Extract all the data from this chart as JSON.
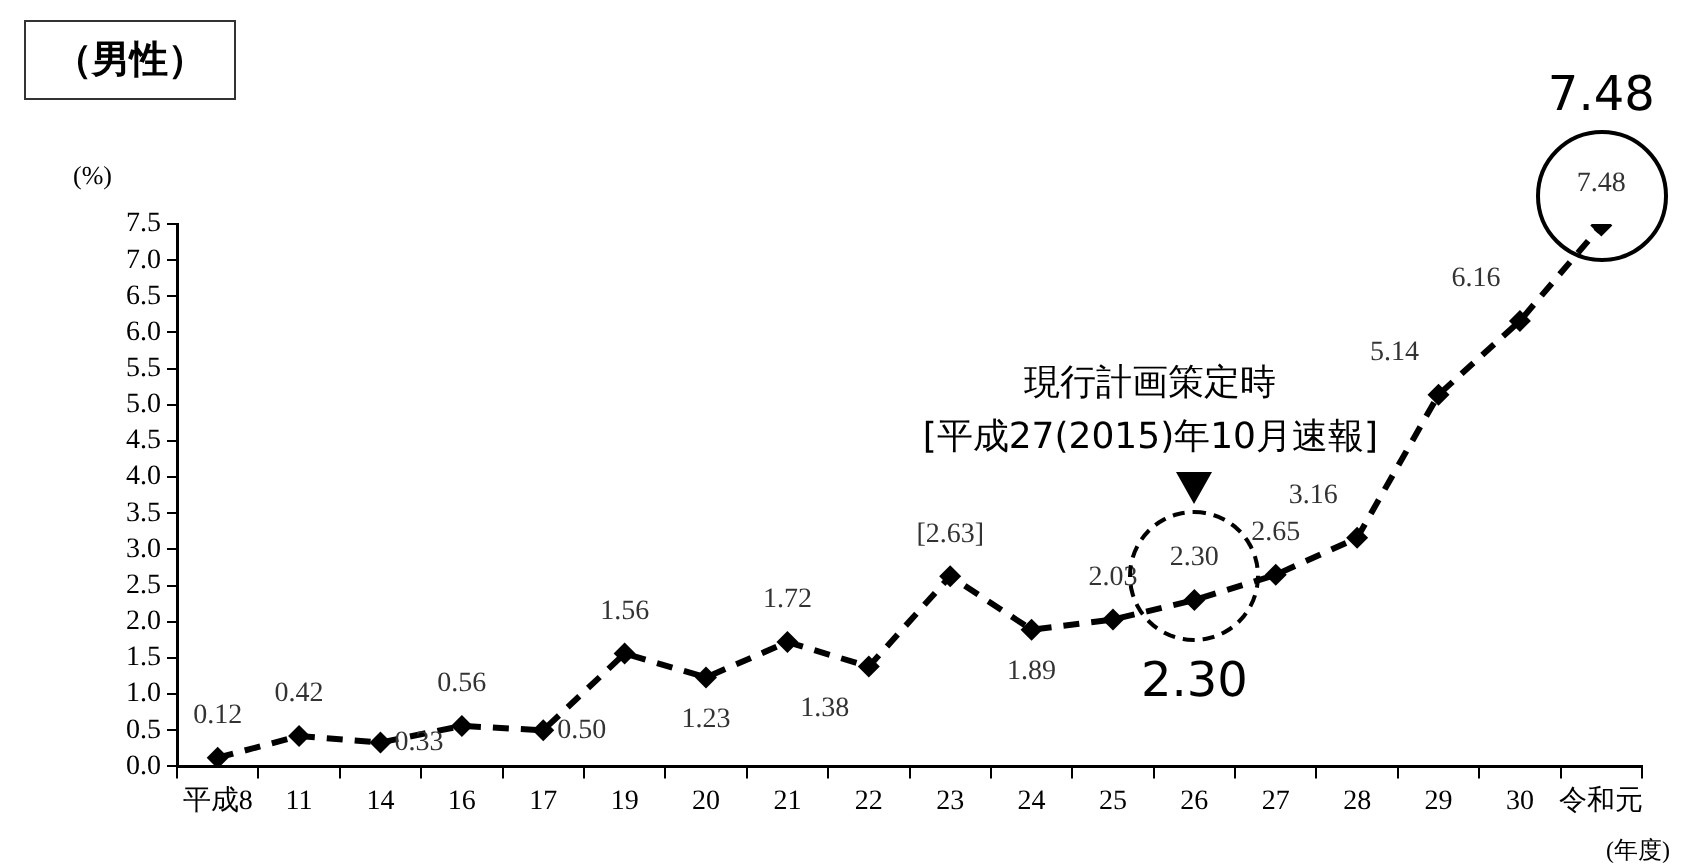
{
  "chart_data": {
    "type": "line",
    "title": "（男性）",
    "ylabel": "(%)",
    "xlabel": "(年度)",
    "categories": [
      "平成8",
      "11",
      "14",
      "16",
      "17",
      "19",
      "20",
      "21",
      "22",
      "23",
      "24",
      "25",
      "26",
      "27",
      "28",
      "29",
      "30",
      "令和元"
    ],
    "series": [
      {
        "color": "#000000",
        "values": [
          0.12,
          0.42,
          0.33,
          0.56,
          0.5,
          1.56,
          1.23,
          1.72,
          1.38,
          2.63,
          1.89,
          2.03,
          2.3,
          2.65,
          3.16,
          5.14,
          6.16,
          7.48
        ],
        "value_labels": [
          "0.12",
          "0.42",
          "0.33",
          "0.56",
          "0.50",
          "1.56",
          "1.23",
          "1.72",
          "1.38",
          "[2.63]",
          "1.89",
          "2.03",
          "2.30",
          "2.65",
          "3.16",
          "5.14",
          "6.16",
          "7.48"
        ]
      }
    ],
    "ylim": [
      0,
      7.5
    ],
    "yticks": [
      {
        "value": 0,
        "label": "0.0"
      },
      {
        "value": 0.5,
        "label": "0.5"
      },
      {
        "value": 1,
        "label": "1.0"
      },
      {
        "value": 1.5,
        "label": "1.5"
      },
      {
        "value": 2,
        "label": "2.0"
      },
      {
        "value": 2.5,
        "label": "2.5"
      },
      {
        "value": 3,
        "label": "3.0"
      },
      {
        "value": 3.5,
        "label": "3.5"
      },
      {
        "value": 4,
        "label": "4.0"
      },
      {
        "value": 4.5,
        "label": "4.5"
      },
      {
        "value": 5,
        "label": "5.0"
      },
      {
        "value": 5.5,
        "label": "5.5"
      },
      {
        "value": 6,
        "label": "6.0"
      },
      {
        "value": 6.5,
        "label": "6.5"
      },
      {
        "value": 7,
        "label": "7.0"
      },
      {
        "value": 7.5,
        "label": "7.5"
      }
    ],
    "grid": false,
    "legend": false,
    "marker": "diamond",
    "line_style": "dashed",
    "annotations": [
      {
        "text": "7.48",
        "x": "令和元",
        "y": 7.48
      },
      {
        "text": "2.30",
        "x": "26",
        "y": 2.3
      },
      "現行計画策定時\n[平成27(2015)年10月速報]"
    ]
  }
}
